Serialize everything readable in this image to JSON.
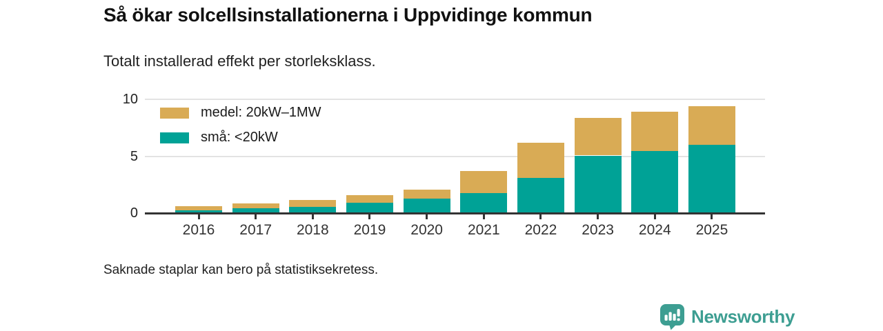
{
  "header": {
    "title": "Så ökar solcellsinstallationerna i Uppvidinge kommun",
    "subtitle": "Totalt installerad effekt per storleksklass."
  },
  "footer": {
    "note": "Saknade staplar kan bero på statistiksekretess.",
    "brand_name": "Newsworthy"
  },
  "colors": {
    "medel": "#d9ab55",
    "sma": "#00a296",
    "brand": "#3d9e92",
    "axis": "#333333",
    "grid": "#e3e3e3"
  },
  "chart_data": {
    "type": "bar",
    "stacked": true,
    "title": "Så ökar solcellsinstallationerna i Uppvidinge kommun",
    "subtitle": "Totalt installerad effekt per storleksklass.",
    "categories": [
      "2016",
      "2017",
      "2018",
      "2019",
      "2020",
      "2021",
      "2022",
      "2023",
      "2024",
      "2025"
    ],
    "series": [
      {
        "name": "medel: 20kW–1MW",
        "color_key": "medel",
        "values": [
          0.32,
          0.39,
          0.6,
          0.66,
          0.81,
          1.97,
          3.05,
          3.3,
          3.4,
          3.4
        ]
      },
      {
        "name": "små: <20kW",
        "color_key": "sma",
        "values": [
          0.2,
          0.37,
          0.47,
          0.87,
          1.21,
          1.67,
          3.05,
          5.0,
          5.42,
          5.96
        ]
      }
    ],
    "totals": [
      0.52,
      0.76,
      1.07,
      1.53,
      2.02,
      3.64,
      6.1,
      8.3,
      8.82,
      9.36
    ],
    "xlabel": "",
    "ylabel": "",
    "ylim": [
      0,
      10
    ],
    "yticks": [
      0,
      5,
      10
    ],
    "grid": true,
    "legend_position": "top-left-inside",
    "note": "Saknade staplar kan bero på statistiksekretess."
  }
}
